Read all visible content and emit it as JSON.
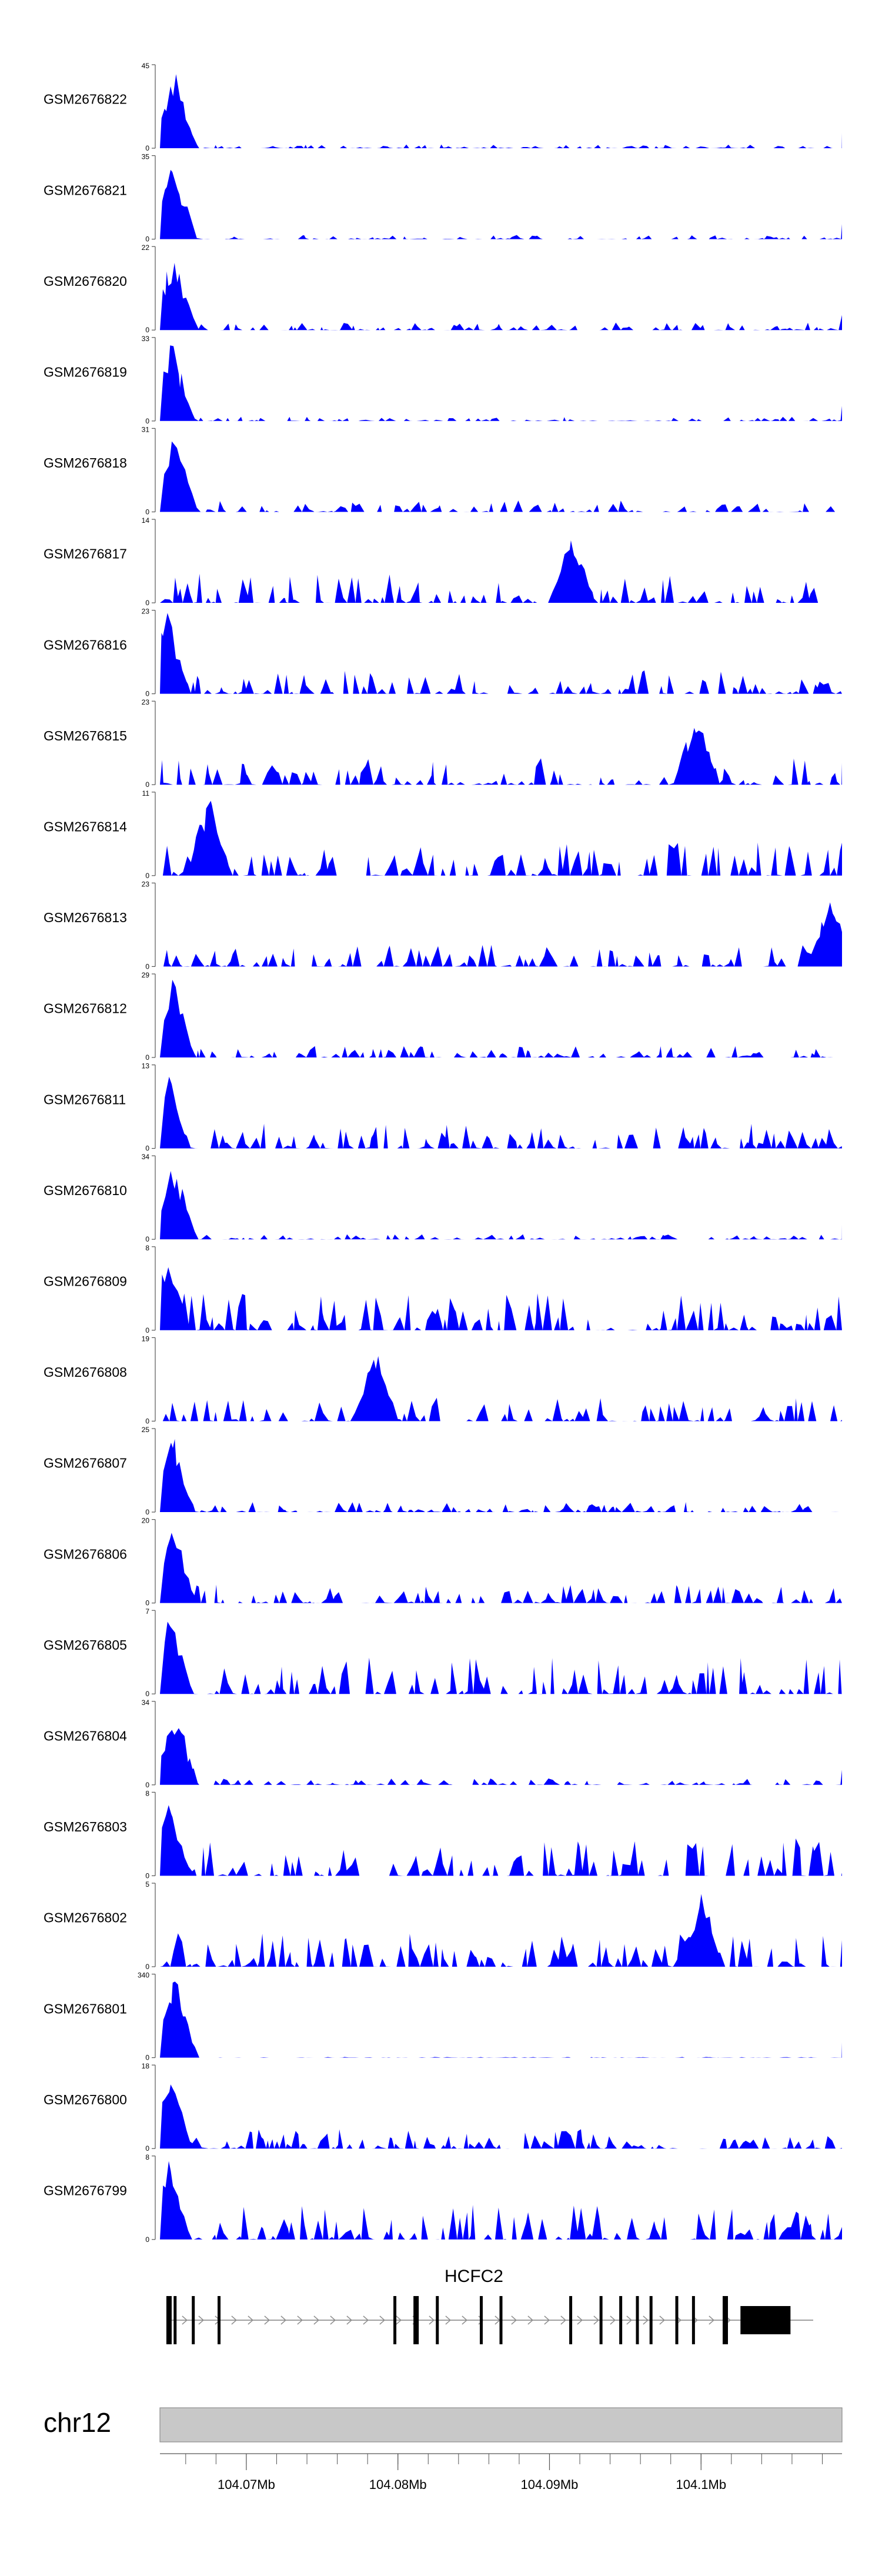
{
  "colors": {
    "fill": "#0000ff",
    "axis": "#555555",
    "gene": "#000000",
    "chrom_band": "#c8c8c8",
    "text": "#000000"
  },
  "chart_data": {
    "type": "area",
    "title": "",
    "x_range_mb": [
      104.0643,
      104.1093
    ],
    "tracks": [
      {
        "name": "GSM2676822",
        "ymax": "45",
        "ymin": "0",
        "peak_mb": 104.0653,
        "bg": 0.045,
        "seed": 22
      },
      {
        "name": "GSM2676821",
        "ymax": "35",
        "ymin": "0",
        "peak_mb": 104.0652,
        "bg": 0.05,
        "seed": 21
      },
      {
        "name": "GSM2676820",
        "ymax": "22",
        "ymin": "0",
        "peak_mb": 104.0652,
        "bg": 0.09,
        "seed": 20
      },
      {
        "name": "GSM2676819",
        "ymax": "33",
        "ymin": "0",
        "peak_mb": 104.0651,
        "bg": 0.05,
        "seed": 19
      },
      {
        "name": "GSM2676818",
        "ymax": "31",
        "ymin": "0",
        "peak_mb": 104.0653,
        "bg": 0.14,
        "seed": 18
      },
      {
        "name": "GSM2676817",
        "ymax": "14",
        "ymin": "0",
        "peak_mb": 104.0915,
        "bg": 0.35,
        "seed": 17
      },
      {
        "name": "GSM2676816",
        "ymax": "23",
        "ymin": "0",
        "peak_mb": 104.0648,
        "bg": 0.28,
        "seed": 16
      },
      {
        "name": "GSM2676815",
        "ymax": "23",
        "ymin": "0",
        "peak_mb": 104.0997,
        "bg": 0.32,
        "seed": 15
      },
      {
        "name": "GSM2676814",
        "ymax": "11",
        "ymin": "0",
        "peak_mb": 104.0675,
        "bg": 0.4,
        "seed": 14
      },
      {
        "name": "GSM2676813",
        "ymax": "23",
        "ymin": "0",
        "peak_mb": 104.1085,
        "bg": 0.26,
        "seed": 13
      },
      {
        "name": "GSM2676812",
        "ymax": "29",
        "ymin": "0",
        "peak_mb": 104.0651,
        "bg": 0.14,
        "seed": 12
      },
      {
        "name": "GSM2676811",
        "ymax": "13",
        "ymin": "0",
        "peak_mb": 104.0648,
        "bg": 0.3,
        "seed": 11
      },
      {
        "name": "GSM2676810",
        "ymax": "34",
        "ymin": "0",
        "peak_mb": 104.0652,
        "bg": 0.06,
        "seed": 10
      },
      {
        "name": "GSM2676809",
        "ymax": "8",
        "ymin": "0",
        "peak_mb": 104.0648,
        "bg": 0.45,
        "seed": 9
      },
      {
        "name": "GSM2676808",
        "ymax": "19",
        "ymin": "0",
        "peak_mb": 104.0785,
        "bg": 0.3,
        "seed": 8
      },
      {
        "name": "GSM2676807",
        "ymax": "25",
        "ymin": "0",
        "peak_mb": 104.0651,
        "bg": 0.12,
        "seed": 7
      },
      {
        "name": "GSM2676806",
        "ymax": "20",
        "ymin": "0",
        "peak_mb": 104.0652,
        "bg": 0.22,
        "seed": 6
      },
      {
        "name": "GSM2676805",
        "ymax": "7",
        "ymin": "0",
        "peak_mb": 104.065,
        "bg": 0.45,
        "seed": 5
      },
      {
        "name": "GSM2676804",
        "ymax": "34",
        "ymin": "0",
        "peak_mb": 104.0653,
        "bg": 0.08,
        "seed": 4
      },
      {
        "name": "GSM2676803",
        "ymax": "8",
        "ymin": "0",
        "peak_mb": 104.0648,
        "bg": 0.45,
        "seed": 3
      },
      {
        "name": "GSM2676802",
        "ymax": "5",
        "ymin": "0",
        "peak_mb": 104.1,
        "bg": 0.4,
        "seed": 2
      },
      {
        "name": "GSM2676801",
        "ymax": "340",
        "ymin": "0",
        "peak_mb": 104.0653,
        "bg": 0.008,
        "seed": 1
      },
      {
        "name": "GSM2676800",
        "ymax": "18",
        "ymin": "0",
        "peak_mb": 104.0649,
        "bg": 0.25,
        "seed": 100
      },
      {
        "name": "GSM2676799",
        "ymax": "8",
        "ymin": "0",
        "peak_mb": 104.0648,
        "bg": 0.42,
        "seed": 99
      }
    ],
    "gene": {
      "label": "HCFC2",
      "start_mb": 104.0648,
      "end_mb": 104.1074,
      "strand": "+",
      "exons_mb": [
        104.0649,
        104.0653,
        104.0665,
        104.0682,
        104.0798,
        104.0812,
        104.0826,
        104.0855,
        104.0868,
        104.0914,
        104.0934,
        104.0947,
        104.0958,
        104.0967,
        104.0984,
        104.0995,
        104.1016
      ],
      "last_exon_mb": [
        104.1026,
        104.1059
      ]
    },
    "chromosome": {
      "label": "chr12",
      "ticks_mb": [
        104.07,
        104.08,
        104.09,
        104.1
      ],
      "tick_labels": [
        "104.07Mb",
        "104.08Mb",
        "104.09Mb",
        "104.1Mb"
      ],
      "minor_step_mb": 0.002
    }
  }
}
